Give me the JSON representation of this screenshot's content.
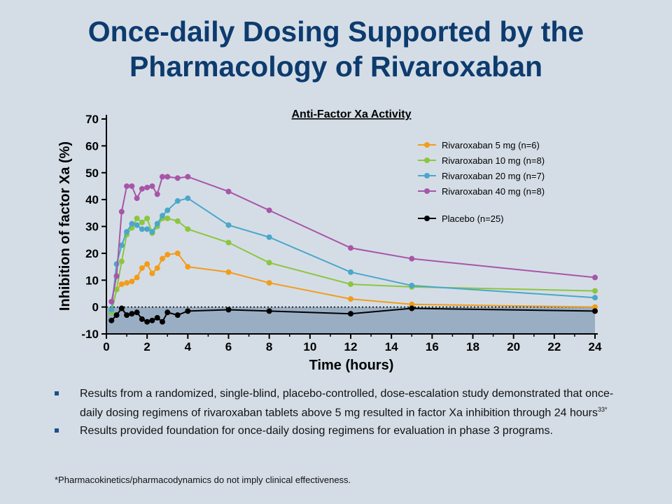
{
  "slide": {
    "title_line1": "Once-daily Dosing Supported by the",
    "title_line2": "Pharmacology of Rivaroxaban",
    "bullets": [
      {
        "text": "Results from a randomized, single-blind, placebo-controlled, dose-escalation study demonstrated that once-daily dosing regimens of rivaroxaban tablets above 5 mg resulted in factor Xa inhibition through 24 hours",
        "sup": "33*"
      },
      {
        "text": "Results provided foundation for once-daily dosing regimens for evaluation in phase 3 programs.",
        "sup": ""
      }
    ],
    "footnote": "*Pharmacokinetics/pharmacodynamics do not imply clinical effectiveness."
  },
  "colors": {
    "title": "#0d3b6e",
    "background": "#d4dde6",
    "placebo_fill": "#9aaec3"
  },
  "chart_data": {
    "type": "line",
    "title": "Anti-Factor Xa Activity",
    "xlabel": "Time (hours)",
    "ylabel": "Inhibition of factor Xa (%)",
    "xlim": [
      0,
      24
    ],
    "ylim": [
      -10,
      70
    ],
    "xticks": [
      0,
      2,
      4,
      6,
      8,
      10,
      12,
      14,
      16,
      18,
      20,
      22,
      24
    ],
    "yticks": [
      -10,
      0,
      10,
      20,
      30,
      40,
      50,
      60,
      70
    ],
    "legend_position": "top-right",
    "series": [
      {
        "name": "Rivaroxaban 5 mg (n=6)",
        "color": "#f39c1a",
        "x": [
          0.25,
          0.5,
          0.75,
          1,
          1.25,
          1.5,
          1.75,
          2,
          2.25,
          2.5,
          2.75,
          3,
          3.5,
          4,
          6,
          8,
          12,
          15,
          24
        ],
        "y": [
          -1.5,
          6.5,
          8.5,
          9,
          9.5,
          11,
          14.5,
          16,
          12.5,
          14.5,
          18,
          19.5,
          20,
          15,
          13,
          9,
          3,
          1,
          0
        ]
      },
      {
        "name": "Rivaroxaban 10 mg (n=8)",
        "color": "#8cc63f",
        "x": [
          0.25,
          0.5,
          0.75,
          1,
          1.25,
          1.5,
          1.75,
          2,
          2.25,
          2.5,
          2.75,
          3,
          3.5,
          4,
          6,
          8,
          12,
          15,
          24
        ],
        "y": [
          -2,
          6.5,
          17,
          27,
          29.5,
          33,
          31.5,
          33,
          27.5,
          30,
          33,
          33,
          32,
          29,
          24,
          16.5,
          8.5,
          7.5,
          6
        ]
      },
      {
        "name": "Rivaroxaban 20 mg (n=7)",
        "color": "#4aa7c9",
        "x": [
          0.25,
          0.5,
          0.75,
          1,
          1.25,
          1.5,
          1.75,
          2,
          2.25,
          2.5,
          2.75,
          3,
          3.5,
          4,
          6,
          8,
          12,
          15,
          24
        ],
        "y": [
          -1,
          16,
          23,
          28,
          31,
          30.5,
          29,
          29,
          28,
          31,
          34,
          36,
          39.5,
          40.5,
          30.5,
          26,
          13,
          8,
          3.5
        ]
      },
      {
        "name": "Rivaroxaban 40 mg (n=8)",
        "color": "#a855a8",
        "x": [
          0.25,
          0.5,
          0.75,
          1,
          1.25,
          1.5,
          1.75,
          2,
          2.25,
          2.5,
          2.75,
          3,
          3.5,
          4,
          6,
          8,
          12,
          15,
          24
        ],
        "y": [
          2,
          11.5,
          35.5,
          45,
          45,
          40.5,
          44,
          44.5,
          45,
          42,
          48.5,
          48.5,
          48,
          48.5,
          43,
          36,
          22,
          18,
          11
        ]
      },
      {
        "name": "Placebo (n=25)",
        "color": "#000000",
        "x": [
          0.25,
          0.5,
          0.75,
          1,
          1.25,
          1.5,
          1.75,
          2,
          2.25,
          2.5,
          2.75,
          3,
          3.5,
          4,
          6,
          8,
          12,
          15,
          24
        ],
        "y": [
          -5,
          -3,
          -0.5,
          -3,
          -2.5,
          -2,
          -4.5,
          -5.5,
          -5,
          -4,
          -5.5,
          -2,
          -3,
          -1.5,
          -1,
          -1.5,
          -2.5,
          -0.5,
          -1.5
        ]
      }
    ]
  }
}
